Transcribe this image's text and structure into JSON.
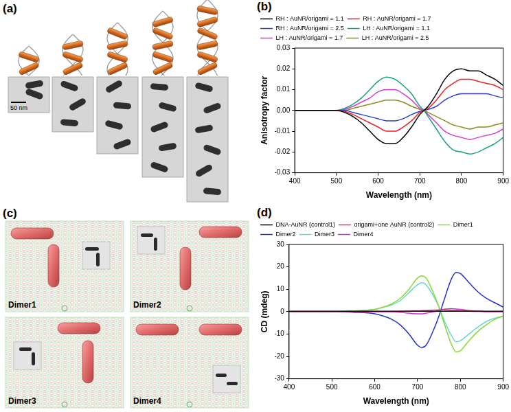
{
  "figure": {
    "a": {
      "label": "(a)",
      "scale_bar": "50 nm"
    },
    "c": {
      "label": "(c)",
      "panels": [
        "Dimer1",
        "Dimer2",
        "Dimer3",
        "Dimer4"
      ]
    }
  },
  "chart_data": [
    {
      "type": "line",
      "title": "(b)",
      "x_label": "Wavelength (nm)",
      "y_label": "Anisotropy factor",
      "x": [
        400,
        450,
        500,
        520,
        540,
        560,
        580,
        600,
        620,
        640,
        660,
        680,
        700,
        710,
        720,
        740,
        760,
        780,
        800,
        820,
        840,
        860,
        880,
        900
      ],
      "series": [
        {
          "name": "RH : AuNR/origami = 1.1",
          "color": "#000000",
          "values": [
            0,
            0,
            0,
            -0.001,
            -0.003,
            -0.006,
            -0.01,
            -0.014,
            -0.016,
            -0.016,
            -0.013,
            -0.008,
            -0.002,
            0,
            0.002,
            0.008,
            0.015,
            0.019,
            0.02,
            0.019,
            0.019,
            0.017,
            0.015,
            0.012
          ]
        },
        {
          "name": "RH : AuNR/origami = 1.7",
          "color": "#e8202a",
          "values": [
            0,
            0,
            0,
            -0.0005,
            -0.002,
            -0.004,
            -0.006,
            -0.008,
            -0.01,
            -0.01,
            -0.008,
            -0.005,
            -0.001,
            0,
            0.001,
            0.005,
            0.01,
            0.013,
            0.015,
            0.015,
            0.014,
            0.013,
            0.012,
            0.01
          ]
        },
        {
          "name": "RH : AuNR/origami = 2.5",
          "color": "#2a3fd0",
          "values": [
            0,
            0,
            0,
            0,
            -0.001,
            -0.002,
            -0.003,
            -0.004,
            -0.005,
            -0.005,
            -0.004,
            -0.002,
            -0.0005,
            0,
            0.0005,
            0.002,
            0.005,
            0.007,
            0.008,
            0.008,
            0.008,
            0.008,
            0.007,
            0.006
          ]
        },
        {
          "name": "LH : AuNR/origami = 1.1",
          "color": "#1a9e80",
          "values": [
            0,
            0,
            0,
            0.001,
            0.003,
            0.006,
            0.01,
            0.014,
            0.016,
            0.015,
            0.012,
            0.008,
            0.002,
            0,
            -0.003,
            -0.009,
            -0.015,
            -0.019,
            -0.02,
            -0.021,
            -0.02,
            -0.018,
            -0.016,
            -0.013
          ]
        },
        {
          "name": "LH : AuNR/origami = 1.7",
          "color": "#d23ad2",
          "values": [
            0,
            0,
            0,
            0.0005,
            0.002,
            0.004,
            0.006,
            0.009,
            0.01,
            0.01,
            0.008,
            0.005,
            0.001,
            0,
            -0.002,
            -0.006,
            -0.01,
            -0.012,
            -0.013,
            -0.014,
            -0.013,
            -0.012,
            -0.011,
            -0.009
          ]
        },
        {
          "name": "LH : AuNR/origami = 2.5",
          "color": "#8c8c1a",
          "values": [
            0,
            0,
            0,
            0,
            0.001,
            0.002,
            0.003,
            0.004,
            0.005,
            0.005,
            0.004,
            0.002,
            0.0005,
            0,
            -0.001,
            -0.003,
            -0.005,
            -0.007,
            -0.008,
            -0.009,
            -0.008,
            -0.008,
            -0.007,
            -0.006
          ]
        }
      ],
      "xlim": [
        400,
        900
      ],
      "xticks": [
        400,
        500,
        600,
        700,
        800,
        900
      ],
      "ylim": [
        -0.03,
        0.03
      ],
      "yticks": [
        -0.03,
        -0.02,
        -0.01,
        {
          "value": 0,
          "label": "0.00"
        },
        0.01,
        0.02,
        0.03
      ],
      "grid": false,
      "legend": "top"
    },
    {
      "type": "line",
      "title": "(d)",
      "x_label": "Wavelength (nm)",
      "y_label": "CD (mdeg)",
      "x": [
        400,
        450,
        500,
        550,
        600,
        620,
        640,
        660,
        680,
        700,
        710,
        720,
        740,
        750,
        760,
        780,
        790,
        800,
        820,
        840,
        860,
        880,
        900
      ],
      "series": [
        {
          "name": "DNA-AuNR (control1)",
          "color": "#000000",
          "values": [
            0.2,
            0.2,
            0.2,
            0.2,
            0.2,
            0.2,
            0.2,
            0.2,
            0.2,
            0.2,
            0.2,
            0.2,
            0.2,
            0.2,
            0.2,
            0.2,
            0.2,
            0.2,
            0.2,
            0.2,
            0.2,
            0.2,
            0.2
          ]
        },
        {
          "name": "origami+one AuNR (control2)",
          "color": "#e0306a",
          "values": [
            0,
            0,
            0,
            0,
            0,
            0,
            0,
            0.1,
            0.2,
            0.3,
            0.4,
            0.5,
            0.7,
            0.8,
            0.8,
            0.6,
            0.5,
            0.4,
            0.2,
            0.1,
            0,
            0,
            0
          ]
        },
        {
          "name": "Dimer1",
          "color": "#88d830",
          "values": [
            0,
            0,
            0,
            0.3,
            1,
            2,
            3.5,
            6,
            10,
            15,
            16,
            15,
            7,
            2,
            -4,
            -15,
            -18,
            -17.5,
            -13,
            -9,
            -6,
            -3.5,
            -2
          ]
        },
        {
          "name": "Dimer2",
          "color": "#2433c8",
          "values": [
            0,
            0,
            0,
            -0.3,
            -1,
            -2,
            -3.5,
            -6,
            -10,
            -15,
            -16,
            -15,
            -7,
            -2,
            4,
            15,
            17.5,
            17,
            13,
            9,
            6,
            4,
            2
          ]
        },
        {
          "name": "Dimer3",
          "color": "#66d8d0",
          "values": [
            0,
            0,
            0,
            0.3,
            1,
            2,
            3,
            5,
            8.5,
            12,
            13,
            12,
            6,
            2,
            -3,
            -11,
            -13.5,
            -13,
            -10,
            -7,
            -4.5,
            -3,
            -2
          ]
        },
        {
          "name": "Dimer4",
          "color": "#cc33cc",
          "values": [
            0,
            0,
            0,
            0,
            0,
            0,
            0,
            -0.3,
            -0.7,
            -1,
            -1,
            -0.7,
            0,
            0.5,
            1,
            1.3,
            1.2,
            1,
            0.5,
            0.2,
            0,
            0,
            0
          ]
        }
      ],
      "xlim": [
        400,
        900
      ],
      "xticks": [
        400,
        500,
        600,
        700,
        800,
        900
      ],
      "ylim": [
        -30,
        30
      ],
      "yticks": [
        -30,
        -20,
        -10,
        0,
        10,
        20,
        30
      ],
      "grid": false,
      "legend": "top"
    }
  ]
}
